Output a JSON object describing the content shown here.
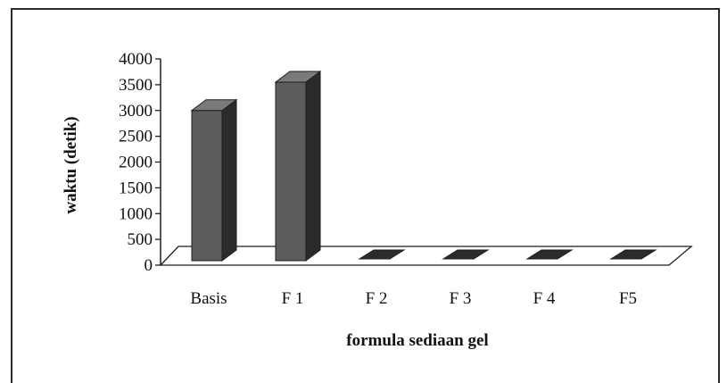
{
  "chart_data": {
    "type": "bar",
    "style": "3d-column",
    "categories": [
      "Basis",
      "F 1",
      "F 2",
      "F 3",
      "F 4",
      "F5"
    ],
    "values": [
      3000,
      3550,
      0,
      0,
      0,
      0
    ],
    "xlabel": "formula sediaan gel",
    "ylabel": "waktu (detik)",
    "ylim": [
      0,
      4000
    ],
    "yticks": [
      "0",
      "500",
      "1000",
      "1500",
      "2000",
      "2500",
      "3000",
      "3500",
      "4000"
    ],
    "grid": false,
    "legend": "none",
    "colors": {
      "bar_front": "#5c5c5c",
      "bar_side": "#2b2b2b",
      "bar_top": "#7a7a7a",
      "floor": "#ffffff",
      "outline": "#1e1e1e"
    }
  }
}
